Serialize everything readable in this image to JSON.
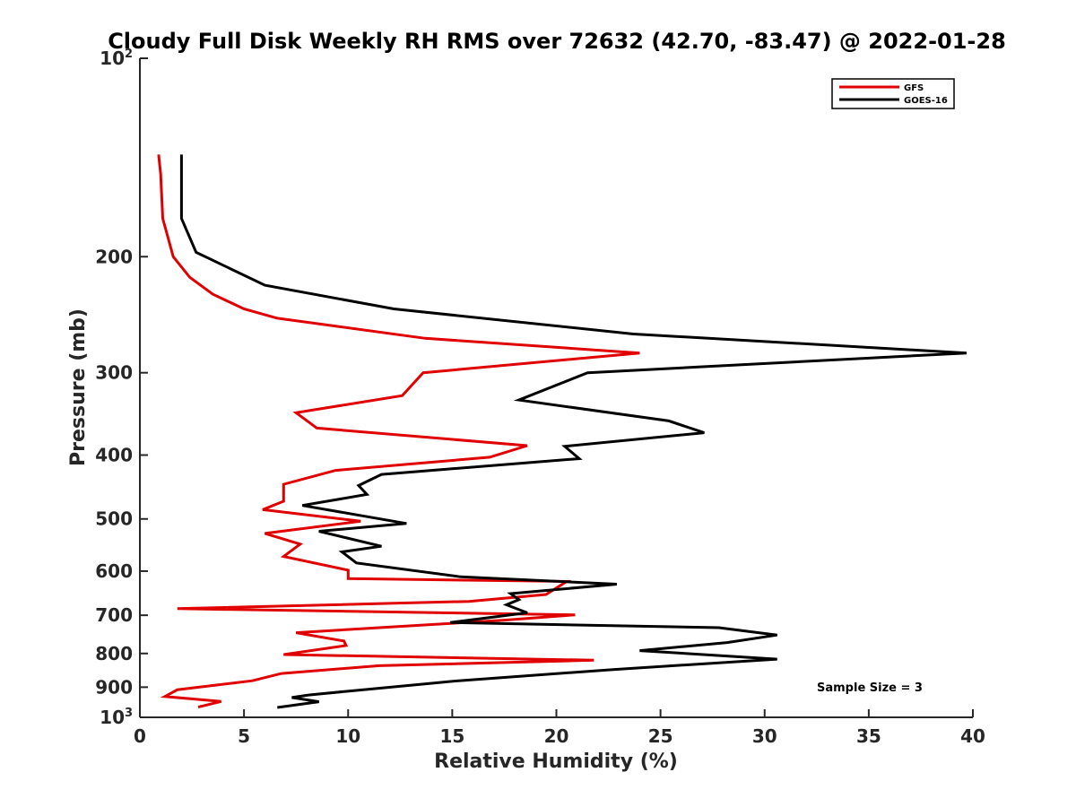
{
  "chart_data": {
    "type": "line",
    "title": "Cloudy Full Disk Weekly RH RMS over 72632 (42.70, -83.47) @ 2022-01-28",
    "xlabel": "Relative Humidity (%)",
    "ylabel": "Pressure (mb)",
    "xlim": [
      0,
      40
    ],
    "ylim": [
      100,
      1000
    ],
    "y_scale": "log",
    "y_reversed": true,
    "xticks": [
      0,
      5,
      10,
      15,
      20,
      25,
      30,
      35,
      40
    ],
    "yticks": [
      {
        "value": 100,
        "label": "10",
        "sup": "2"
      },
      {
        "value": 200,
        "label": "200"
      },
      {
        "value": 300,
        "label": "300"
      },
      {
        "value": 400,
        "label": "400"
      },
      {
        "value": 500,
        "label": "500"
      },
      {
        "value": 600,
        "label": "600"
      },
      {
        "value": 700,
        "label": "700"
      },
      {
        "value": 800,
        "label": "800"
      },
      {
        "value": 900,
        "label": "900"
      },
      {
        "value": 1000,
        "label": "10",
        "sup": "3"
      }
    ],
    "grid": false,
    "legend_position": "top-right",
    "annotation": "Sample Size = 3",
    "series": [
      {
        "name": "GFS",
        "color": "#e00000",
        "points": [
          [
            0.9,
            140
          ],
          [
            1.0,
            150
          ],
          [
            1.1,
            175
          ],
          [
            1.6,
            200
          ],
          [
            2.4,
            215
          ],
          [
            3.5,
            228
          ],
          [
            5.0,
            240
          ],
          [
            6.6,
            248
          ],
          [
            13.7,
            266
          ],
          [
            24.0,
            280
          ],
          [
            13.6,
            300
          ],
          [
            12.6,
            325
          ],
          [
            7.5,
            345
          ],
          [
            8.5,
            364
          ],
          [
            18.6,
            387
          ],
          [
            16.8,
            403
          ],
          [
            9.4,
            422
          ],
          [
            6.9,
            443
          ],
          [
            6.9,
            470
          ],
          [
            5.9,
            484
          ],
          [
            10.6,
            504
          ],
          [
            6.0,
            526
          ],
          [
            7.7,
            546
          ],
          [
            6.9,
            570
          ],
          [
            10.0,
            598
          ],
          [
            10.0,
            616
          ],
          [
            20.5,
            622
          ],
          [
            19.5,
            651
          ],
          [
            15.8,
            667
          ],
          [
            1.8,
            684
          ],
          [
            20.9,
            699
          ],
          [
            17.5,
            712
          ],
          [
            7.5,
            744
          ],
          [
            9.8,
            766
          ],
          [
            9.9,
            778
          ],
          [
            6.9,
            803
          ],
          [
            21.8,
            819
          ],
          [
            11.5,
            835
          ],
          [
            6.8,
            858
          ],
          [
            5.4,
            880
          ],
          [
            1.8,
            908
          ],
          [
            1.2,
            930
          ],
          [
            3.9,
            946
          ],
          [
            2.8,
            965
          ]
        ]
      },
      {
        "name": "GOES-16",
        "color": "#000000",
        "points": [
          [
            2.0,
            140
          ],
          [
            2.0,
            175
          ],
          [
            2.7,
            197
          ],
          [
            6.0,
            221
          ],
          [
            12.2,
            240
          ],
          [
            23.7,
            262
          ],
          [
            39.7,
            280
          ],
          [
            21.5,
            300
          ],
          [
            18.2,
            330
          ],
          [
            25.4,
            355
          ],
          [
            27.1,
            370
          ],
          [
            20.4,
            388
          ],
          [
            21.1,
            405
          ],
          [
            11.6,
            428
          ],
          [
            10.5,
            445
          ],
          [
            10.9,
            459
          ],
          [
            7.8,
            477
          ],
          [
            12.8,
            508
          ],
          [
            8.6,
            522
          ],
          [
            11.6,
            550
          ],
          [
            9.7,
            561
          ],
          [
            10.4,
            583
          ],
          [
            15.4,
            612
          ],
          [
            22.9,
            628
          ],
          [
            17.8,
            649
          ],
          [
            18.2,
            663
          ],
          [
            17.6,
            675
          ],
          [
            18.6,
            694
          ],
          [
            14.9,
            718
          ],
          [
            27.8,
            731
          ],
          [
            30.6,
            750
          ],
          [
            28.2,
            770
          ],
          [
            24.0,
            792
          ],
          [
            30.6,
            816
          ],
          [
            22.8,
            846
          ],
          [
            15.3,
            880
          ],
          [
            10.1,
            912
          ],
          [
            8.1,
            925
          ],
          [
            7.3,
            933
          ],
          [
            8.6,
            947
          ],
          [
            6.6,
            966
          ]
        ]
      }
    ]
  }
}
